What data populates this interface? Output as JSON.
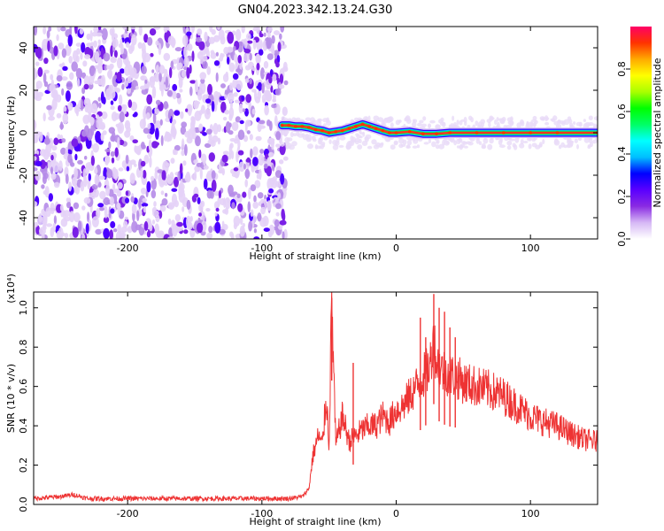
{
  "title": "GN04.2023.342.13.24.G30",
  "chart_data": [
    {
      "type": "heatmap",
      "xlabel": "Height of straight line (km)",
      "ylabel": "Frequency (Hz)",
      "xlim": [
        -270,
        150
      ],
      "ylim": [
        -50,
        50
      ],
      "x_ticks": [
        -200,
        -100,
        0,
        100
      ],
      "y_ticks": [
        -40,
        -20,
        0,
        20,
        40
      ],
      "colorbar": {
        "label": "Normalized spectral amplitude",
        "range": [
          0.0,
          1.0
        ],
        "ticks": [
          0.0,
          0.2,
          0.4,
          0.6,
          0.8
        ],
        "colors": [
          "#ffffff",
          "#d6b8f5",
          "#8a2be2",
          "#5a00ff",
          "#0000ff",
          "#00bfff",
          "#00ffff",
          "#00ff66",
          "#00ff00",
          "#aaff00",
          "#ffff00",
          "#ffaa00",
          "#ff3300",
          "#ff0066"
        ]
      },
      "noise_region": {
        "x_range": [
          -270,
          -82
        ],
        "freq_range": [
          -50,
          50
        ],
        "level": 0.15
      },
      "ridge": {
        "x": [
          -85,
          -80,
          -75,
          -70,
          -65,
          -60,
          -55,
          -50,
          -45,
          -40,
          -35,
          -30,
          -25,
          -20,
          -15,
          -10,
          -5,
          0,
          10,
          20,
          30,
          40,
          60,
          80,
          100,
          120,
          150
        ],
        "freq": [
          3.5,
          3.5,
          3,
          3,
          2.5,
          1.5,
          1,
          0,
          0.5,
          1,
          2,
          3,
          4,
          3,
          2,
          1,
          0,
          0,
          0.5,
          -0.5,
          -0.5,
          0,
          0,
          0,
          0,
          0,
          0
        ],
        "peak_level": 0.95
      }
    },
    {
      "type": "line",
      "xlabel": "Height of straight line (km)",
      "ylabel": "SNR (10 * v/v)",
      "y_scale_label": "(x10⁴)",
      "xlim": [
        -270,
        150
      ],
      "ylim": [
        0,
        1.08
      ],
      "x_ticks": [
        -200,
        -100,
        0,
        100
      ],
      "y_ticks": [
        0.0,
        0.2,
        0.4,
        0.6,
        0.8,
        1.0
      ],
      "color": "#ee3333",
      "series": [
        {
          "x": [
            -270,
            -250,
            -240,
            -230,
            -200,
            -150,
            -100,
            -80,
            -70,
            -65,
            -62,
            -58,
            -55,
            -52,
            -50,
            -48,
            -45,
            -40,
            -35,
            -30,
            -25,
            -20,
            -15,
            -10,
            -5,
            0,
            5,
            10,
            15,
            20,
            25,
            28,
            30,
            35,
            40,
            45,
            50,
            60,
            70,
            80,
            90,
            100,
            110,
            120,
            130,
            140,
            150
          ],
          "y": [
            0.03,
            0.04,
            0.05,
            0.03,
            0.03,
            0.03,
            0.03,
            0.03,
            0.04,
            0.08,
            0.25,
            0.35,
            0.3,
            0.55,
            0.3,
            1.05,
            0.3,
            0.45,
            0.32,
            0.35,
            0.38,
            0.4,
            0.4,
            0.45,
            0.42,
            0.48,
            0.5,
            0.55,
            0.6,
            0.65,
            0.7,
            0.85,
            0.72,
            0.68,
            0.66,
            0.65,
            0.62,
            0.6,
            0.58,
            0.55,
            0.5,
            0.45,
            0.42,
            0.4,
            0.36,
            0.33,
            0.32
          ]
        }
      ],
      "spikes": [
        {
          "x": -48,
          "y": 1.05
        },
        {
          "x": -32,
          "y": 0.72
        },
        {
          "x": 18,
          "y": 0.95
        },
        {
          "x": 22,
          "y": 0.85
        },
        {
          "x": 28,
          "y": 1.07
        },
        {
          "x": 32,
          "y": 1.0
        },
        {
          "x": 36,
          "y": 0.98
        },
        {
          "x": 40,
          "y": 0.9
        },
        {
          "x": 44,
          "y": 0.85
        }
      ]
    }
  ]
}
